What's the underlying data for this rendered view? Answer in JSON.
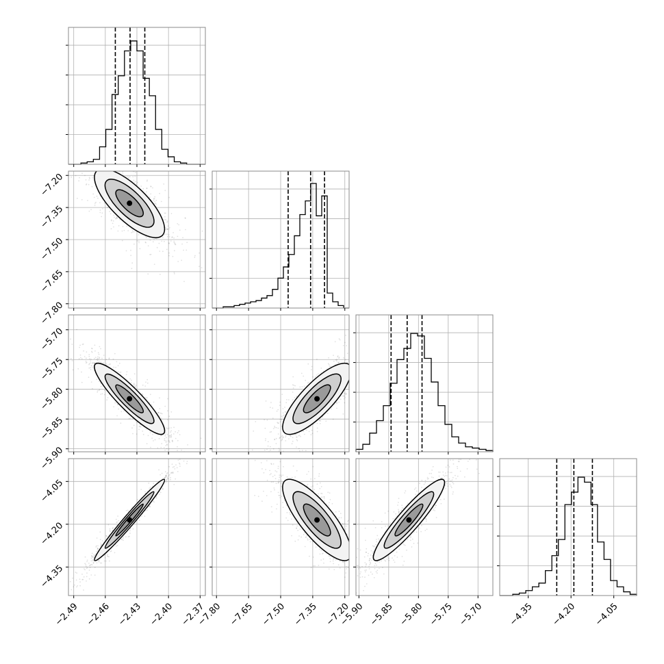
{
  "chart_data": {
    "type": "corner",
    "parameters": [
      {
        "range": [
          -2.495,
          -2.365
        ],
        "ticks": [
          -2.49,
          -2.46,
          -2.43,
          -2.4,
          -2.37
        ],
        "tick_labels": [
          "−2.49",
          "−2.46",
          "−2.43",
          "−2.40",
          "−2.37"
        ],
        "quantiles": [
          -2.4505,
          -2.4365,
          -2.4225
        ],
        "mode": -2.437,
        "sigma": 0.0145,
        "skew": 0
      },
      {
        "range": [
          -7.82,
          -7.18
        ],
        "ticks": [
          -7.8,
          -7.65,
          -7.5,
          -7.35,
          -7.2
        ],
        "tick_labels": [
          "−7.80",
          "−7.65",
          "−7.50",
          "−7.35",
          "−7.20"
        ],
        "quantiles": [
          -7.465,
          -7.36,
          -7.295
        ],
        "mode": -7.33,
        "sigma": 0.07,
        "skew": -1
      },
      {
        "range": [
          -5.905,
          -5.675
        ],
        "ticks": [
          -5.9,
          -5.85,
          -5.8,
          -5.75,
          -5.7
        ],
        "tick_labels": [
          "−5.90",
          "−5.85",
          "−5.80",
          "−5.75",
          "−5.70"
        ],
        "quantiles": [
          -5.846,
          -5.819,
          -5.794
        ],
        "mode": -5.816,
        "sigma": 0.026,
        "skew": 0.5
      },
      {
        "range": [
          -4.45,
          -3.97
        ],
        "ticks": [
          -4.35,
          -4.2,
          -4.05
        ],
        "tick_labels": [
          "−4.35",
          "−4.20",
          "−4.05"
        ],
        "quantiles": [
          -4.25,
          -4.19,
          -4.125
        ],
        "mode": -4.185,
        "sigma": 0.062,
        "skew": 0.3
      }
    ],
    "hist1d_heights": [
      [
        0,
        0,
        0.01,
        0.02,
        0.04,
        0.14,
        0.28,
        0.56,
        0.71,
        0.91,
        0.99,
        0.91,
        0.69,
        0.55,
        0.28,
        0.12,
        0.06,
        0.02,
        0.01,
        0,
        0,
        0
      ],
      [
        0,
        0,
        0.01,
        0.01,
        0.02,
        0.03,
        0.04,
        0.05,
        0.06,
        0.08,
        0.1,
        0.15,
        0.24,
        0.33,
        0.43,
        0.58,
        0.75,
        0.86,
        1.0,
        0.74,
        0.9,
        0.12,
        0.05,
        0.02,
        0
      ],
      [
        0.02,
        0.06,
        0.15,
        0.25,
        0.37,
        0.55,
        0.74,
        0.83,
        0.95,
        0.93,
        0.75,
        0.56,
        0.37,
        0.22,
        0.12,
        0.07,
        0.04,
        0.03,
        0.02,
        0.01
      ],
      [
        0,
        0,
        0.01,
        0.02,
        0.04,
        0.07,
        0.1,
        0.2,
        0.32,
        0.45,
        0.73,
        0.83,
        0.95,
        0.91,
        0.73,
        0.43,
        0.29,
        0.12,
        0.07,
        0.03,
        0.01
      ]
    ],
    "correlations": {
      "1-0": -0.75,
      "2-0": -0.9,
      "2-1": 0.8,
      "3-0": 0.98,
      "3-1": -0.8,
      "3-2": 0.92
    },
    "grid": true,
    "title": "",
    "xlabel": "",
    "ylabel": ""
  }
}
